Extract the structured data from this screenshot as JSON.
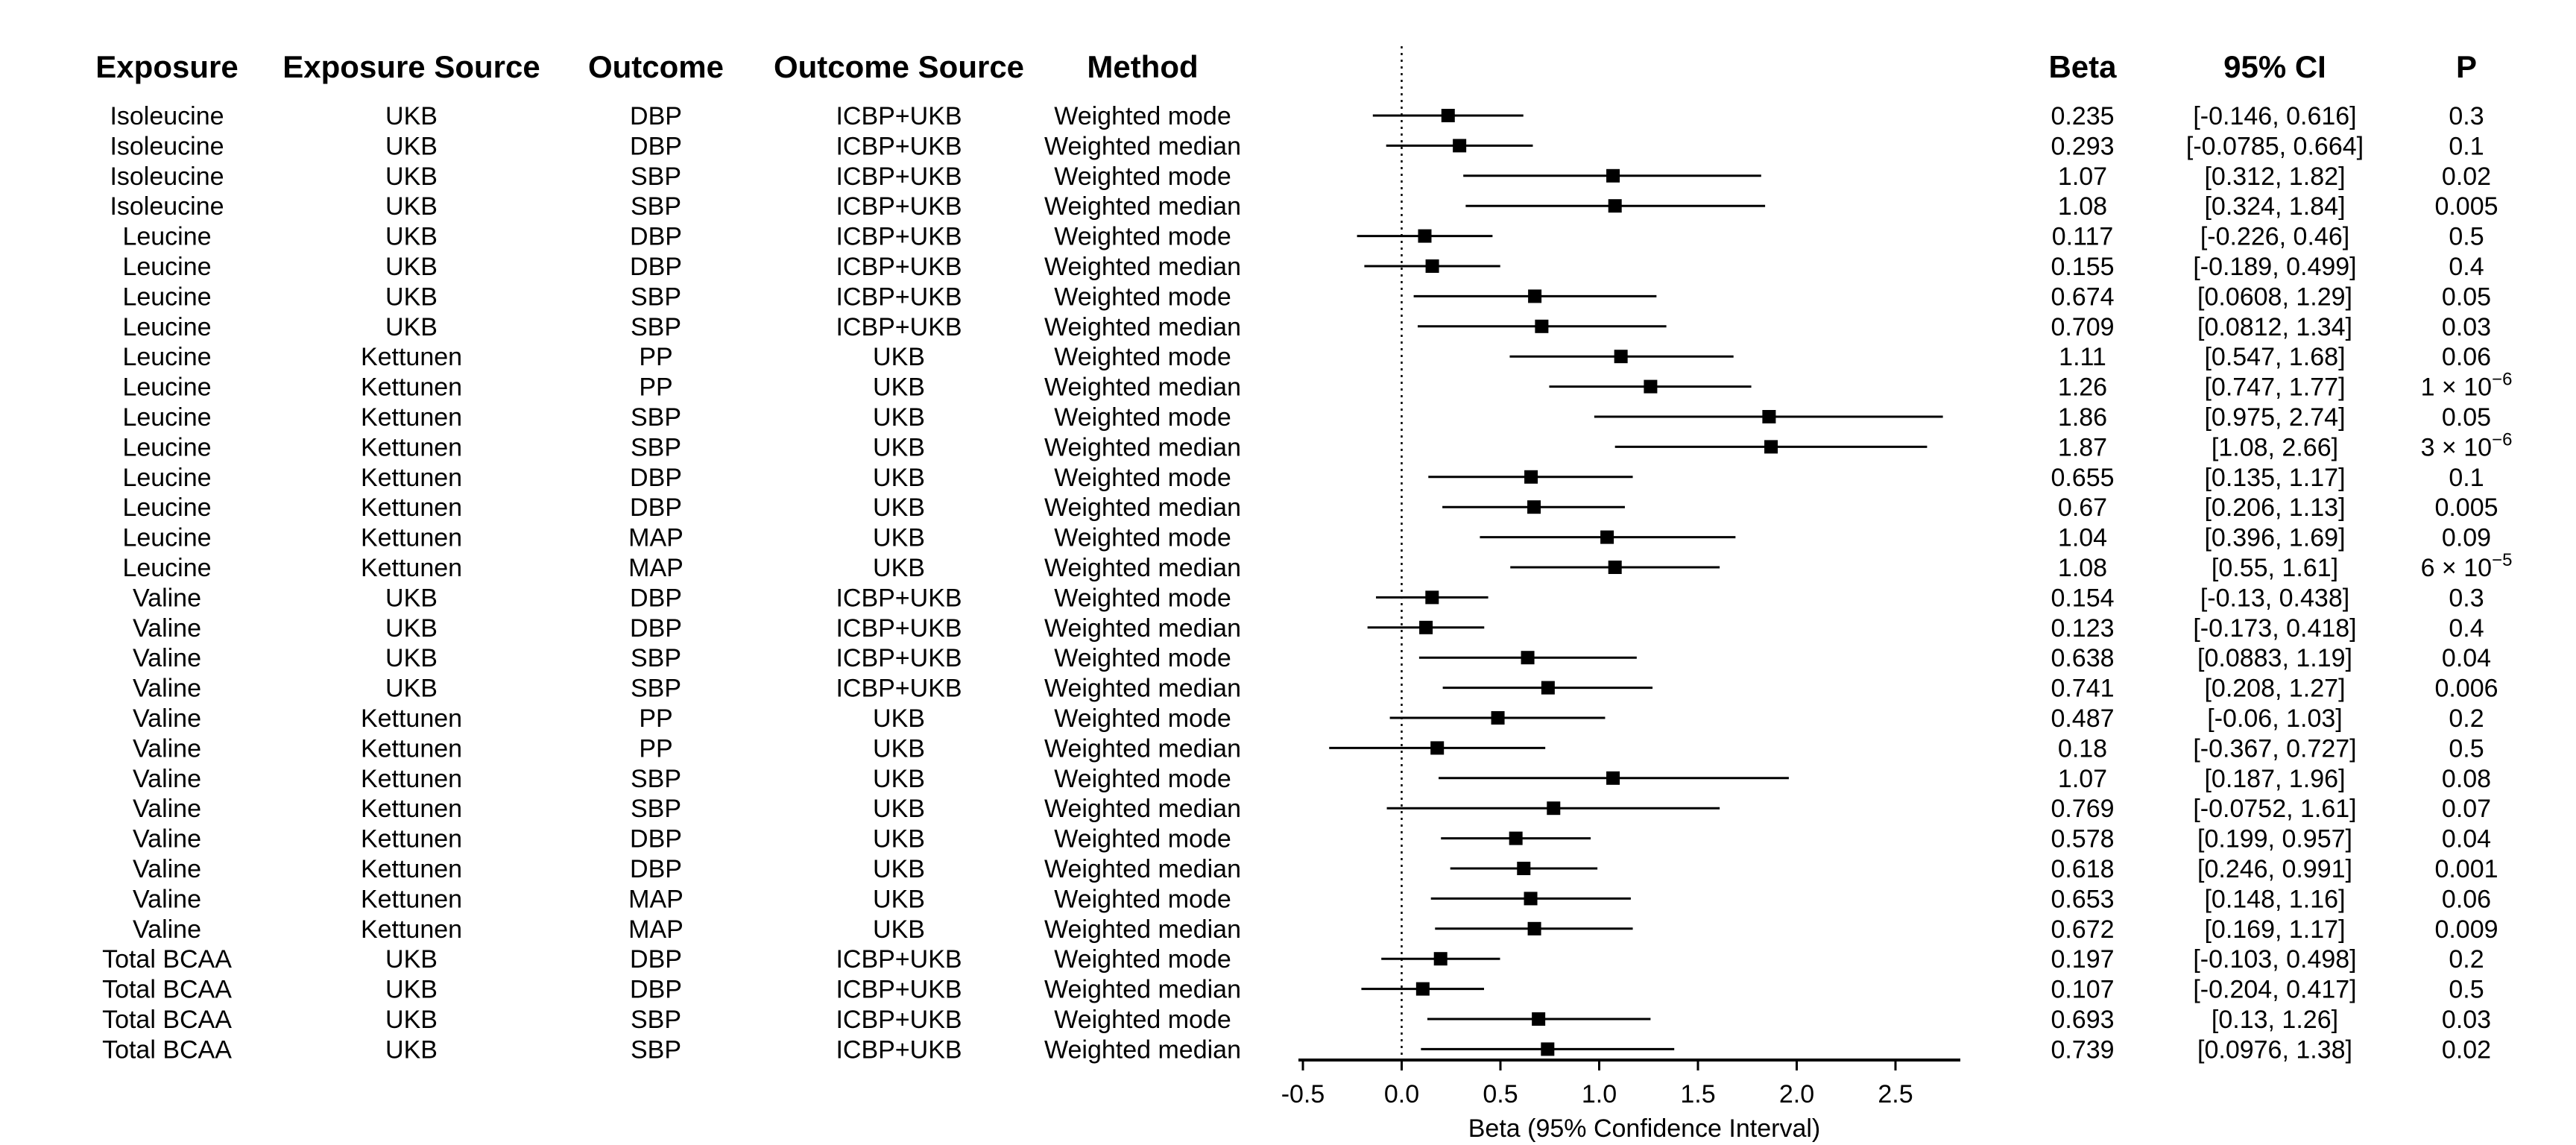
{
  "chart_data": {
    "type": "forest",
    "columns": [
      "Exposure",
      "Exposure Source",
      "Outcome",
      "Outcome Source",
      "Method",
      "Beta",
      "95% CI",
      "P"
    ],
    "rows": [
      {
        "exposure": "Isoleucine",
        "exposure_source": "UKB",
        "outcome": "DBP",
        "outcome_source": "ICBP+UKB",
        "method": "Weighted mode",
        "beta": 0.235,
        "lo": -0.146,
        "hi": 0.616,
        "beta_text": "0.235",
        "ci_text": "[-0.146, 0.616]",
        "p": "0.3",
        "p_exp": ""
      },
      {
        "exposure": "Isoleucine",
        "exposure_source": "UKB",
        "outcome": "DBP",
        "outcome_source": "ICBP+UKB",
        "method": "Weighted median",
        "beta": 0.293,
        "lo": -0.0785,
        "hi": 0.664,
        "beta_text": "0.293",
        "ci_text": "[-0.0785, 0.664]",
        "p": "0.1",
        "p_exp": ""
      },
      {
        "exposure": "Isoleucine",
        "exposure_source": "UKB",
        "outcome": "SBP",
        "outcome_source": "ICBP+UKB",
        "method": "Weighted mode",
        "beta": 1.07,
        "lo": 0.312,
        "hi": 1.82,
        "beta_text": "1.07",
        "ci_text": "[0.312, 1.82]",
        "p": "0.02",
        "p_exp": ""
      },
      {
        "exposure": "Isoleucine",
        "exposure_source": "UKB",
        "outcome": "SBP",
        "outcome_source": "ICBP+UKB",
        "method": "Weighted median",
        "beta": 1.08,
        "lo": 0.324,
        "hi": 1.84,
        "beta_text": "1.08",
        "ci_text": "[0.324, 1.84]",
        "p": "0.005",
        "p_exp": ""
      },
      {
        "exposure": "Leucine",
        "exposure_source": "UKB",
        "outcome": "DBP",
        "outcome_source": "ICBP+UKB",
        "method": "Weighted mode",
        "beta": 0.117,
        "lo": -0.226,
        "hi": 0.46,
        "beta_text": "0.117",
        "ci_text": "[-0.226, 0.46]",
        "p": "0.5",
        "p_exp": ""
      },
      {
        "exposure": "Leucine",
        "exposure_source": "UKB",
        "outcome": "DBP",
        "outcome_source": "ICBP+UKB",
        "method": "Weighted median",
        "beta": 0.155,
        "lo": -0.189,
        "hi": 0.499,
        "beta_text": "0.155",
        "ci_text": "[-0.189, 0.499]",
        "p": "0.4",
        "p_exp": ""
      },
      {
        "exposure": "Leucine",
        "exposure_source": "UKB",
        "outcome": "SBP",
        "outcome_source": "ICBP+UKB",
        "method": "Weighted mode",
        "beta": 0.674,
        "lo": 0.0608,
        "hi": 1.29,
        "beta_text": "0.674",
        "ci_text": "[0.0608, 1.29]",
        "p": "0.05",
        "p_exp": ""
      },
      {
        "exposure": "Leucine",
        "exposure_source": "UKB",
        "outcome": "SBP",
        "outcome_source": "ICBP+UKB",
        "method": "Weighted median",
        "beta": 0.709,
        "lo": 0.0812,
        "hi": 1.34,
        "beta_text": "0.709",
        "ci_text": "[0.0812, 1.34]",
        "p": "0.03",
        "p_exp": ""
      },
      {
        "exposure": "Leucine",
        "exposure_source": "Kettunen",
        "outcome": "PP",
        "outcome_source": "UKB",
        "method": "Weighted mode",
        "beta": 1.11,
        "lo": 0.547,
        "hi": 1.68,
        "beta_text": "1.11",
        "ci_text": "[0.547, 1.68]",
        "p": "0.06",
        "p_exp": ""
      },
      {
        "exposure": "Leucine",
        "exposure_source": "Kettunen",
        "outcome": "PP",
        "outcome_source": "UKB",
        "method": "Weighted median",
        "beta": 1.26,
        "lo": 0.747,
        "hi": 1.77,
        "beta_text": "1.26",
        "ci_text": "[0.747, 1.77]",
        "p": "1 × 10",
        "p_exp": "−6"
      },
      {
        "exposure": "Leucine",
        "exposure_source": "Kettunen",
        "outcome": "SBP",
        "outcome_source": "UKB",
        "method": "Weighted mode",
        "beta": 1.86,
        "lo": 0.975,
        "hi": 2.74,
        "beta_text": "1.86",
        "ci_text": "[0.975, 2.74]",
        "p": "0.05",
        "p_exp": ""
      },
      {
        "exposure": "Leucine",
        "exposure_source": "Kettunen",
        "outcome": "SBP",
        "outcome_source": "UKB",
        "method": "Weighted median",
        "beta": 1.87,
        "lo": 1.08,
        "hi": 2.66,
        "beta_text": "1.87",
        "ci_text": "[1.08, 2.66]",
        "p": "3 × 10",
        "p_exp": "−6"
      },
      {
        "exposure": "Leucine",
        "exposure_source": "Kettunen",
        "outcome": "DBP",
        "outcome_source": "UKB",
        "method": "Weighted mode",
        "beta": 0.655,
        "lo": 0.135,
        "hi": 1.17,
        "beta_text": "0.655",
        "ci_text": "[0.135, 1.17]",
        "p": "0.1",
        "p_exp": ""
      },
      {
        "exposure": "Leucine",
        "exposure_source": "Kettunen",
        "outcome": "DBP",
        "outcome_source": "UKB",
        "method": "Weighted median",
        "beta": 0.67,
        "lo": 0.206,
        "hi": 1.13,
        "beta_text": "0.67",
        "ci_text": "[0.206, 1.13]",
        "p": "0.005",
        "p_exp": ""
      },
      {
        "exposure": "Leucine",
        "exposure_source": "Kettunen",
        "outcome": "MAP",
        "outcome_source": "UKB",
        "method": "Weighted mode",
        "beta": 1.04,
        "lo": 0.396,
        "hi": 1.69,
        "beta_text": "1.04",
        "ci_text": "[0.396, 1.69]",
        "p": "0.09",
        "p_exp": ""
      },
      {
        "exposure": "Leucine",
        "exposure_source": "Kettunen",
        "outcome": "MAP",
        "outcome_source": "UKB",
        "method": "Weighted median",
        "beta": 1.08,
        "lo": 0.55,
        "hi": 1.61,
        "beta_text": "1.08",
        "ci_text": "[0.55, 1.61]",
        "p": "6 × 10",
        "p_exp": "−5"
      },
      {
        "exposure": "Valine",
        "exposure_source": "UKB",
        "outcome": "DBP",
        "outcome_source": "ICBP+UKB",
        "method": "Weighted mode",
        "beta": 0.154,
        "lo": -0.13,
        "hi": 0.438,
        "beta_text": "0.154",
        "ci_text": "[-0.13, 0.438]",
        "p": "0.3",
        "p_exp": ""
      },
      {
        "exposure": "Valine",
        "exposure_source": "UKB",
        "outcome": "DBP",
        "outcome_source": "ICBP+UKB",
        "method": "Weighted median",
        "beta": 0.123,
        "lo": -0.173,
        "hi": 0.418,
        "beta_text": "0.123",
        "ci_text": "[-0.173, 0.418]",
        "p": "0.4",
        "p_exp": ""
      },
      {
        "exposure": "Valine",
        "exposure_source": "UKB",
        "outcome": "SBP",
        "outcome_source": "ICBP+UKB",
        "method": "Weighted mode",
        "beta": 0.638,
        "lo": 0.0883,
        "hi": 1.19,
        "beta_text": "0.638",
        "ci_text": "[0.0883, 1.19]",
        "p": "0.04",
        "p_exp": ""
      },
      {
        "exposure": "Valine",
        "exposure_source": "UKB",
        "outcome": "SBP",
        "outcome_source": "ICBP+UKB",
        "method": "Weighted median",
        "beta": 0.741,
        "lo": 0.208,
        "hi": 1.27,
        "beta_text": "0.741",
        "ci_text": "[0.208, 1.27]",
        "p": "0.006",
        "p_exp": ""
      },
      {
        "exposure": "Valine",
        "exposure_source": "Kettunen",
        "outcome": "PP",
        "outcome_source": "UKB",
        "method": "Weighted mode",
        "beta": 0.487,
        "lo": -0.06,
        "hi": 1.03,
        "beta_text": "0.487",
        "ci_text": "[-0.06, 1.03]",
        "p": "0.2",
        "p_exp": ""
      },
      {
        "exposure": "Valine",
        "exposure_source": "Kettunen",
        "outcome": "PP",
        "outcome_source": "UKB",
        "method": "Weighted median",
        "beta": 0.18,
        "lo": -0.367,
        "hi": 0.727,
        "beta_text": "0.18",
        "ci_text": "[-0.367, 0.727]",
        "p": "0.5",
        "p_exp": ""
      },
      {
        "exposure": "Valine",
        "exposure_source": "Kettunen",
        "outcome": "SBP",
        "outcome_source": "UKB",
        "method": "Weighted mode",
        "beta": 1.07,
        "lo": 0.187,
        "hi": 1.96,
        "beta_text": "1.07",
        "ci_text": "[0.187, 1.96]",
        "p": "0.08",
        "p_exp": ""
      },
      {
        "exposure": "Valine",
        "exposure_source": "Kettunen",
        "outcome": "SBP",
        "outcome_source": "UKB",
        "method": "Weighted median",
        "beta": 0.769,
        "lo": -0.0752,
        "hi": 1.61,
        "beta_text": "0.769",
        "ci_text": "[-0.0752, 1.61]",
        "p": "0.07",
        "p_exp": ""
      },
      {
        "exposure": "Valine",
        "exposure_source": "Kettunen",
        "outcome": "DBP",
        "outcome_source": "UKB",
        "method": "Weighted mode",
        "beta": 0.578,
        "lo": 0.199,
        "hi": 0.957,
        "beta_text": "0.578",
        "ci_text": "[0.199, 0.957]",
        "p": "0.04",
        "p_exp": ""
      },
      {
        "exposure": "Valine",
        "exposure_source": "Kettunen",
        "outcome": "DBP",
        "outcome_source": "UKB",
        "method": "Weighted median",
        "beta": 0.618,
        "lo": 0.246,
        "hi": 0.991,
        "beta_text": "0.618",
        "ci_text": "[0.246, 0.991]",
        "p": "0.001",
        "p_exp": ""
      },
      {
        "exposure": "Valine",
        "exposure_source": "Kettunen",
        "outcome": "MAP",
        "outcome_source": "UKB",
        "method": "Weighted mode",
        "beta": 0.653,
        "lo": 0.148,
        "hi": 1.16,
        "beta_text": "0.653",
        "ci_text": "[0.148, 1.16]",
        "p": "0.06",
        "p_exp": ""
      },
      {
        "exposure": "Valine",
        "exposure_source": "Kettunen",
        "outcome": "MAP",
        "outcome_source": "UKB",
        "method": "Weighted median",
        "beta": 0.672,
        "lo": 0.169,
        "hi": 1.17,
        "beta_text": "0.672",
        "ci_text": "[0.169, 1.17]",
        "p": "0.009",
        "p_exp": ""
      },
      {
        "exposure": "Total BCAA",
        "exposure_source": "UKB",
        "outcome": "DBP",
        "outcome_source": "ICBP+UKB",
        "method": "Weighted mode",
        "beta": 0.197,
        "lo": -0.103,
        "hi": 0.498,
        "beta_text": "0.197",
        "ci_text": "[-0.103, 0.498]",
        "p": "0.2",
        "p_exp": ""
      },
      {
        "exposure": "Total BCAA",
        "exposure_source": "UKB",
        "outcome": "DBP",
        "outcome_source": "ICBP+UKB",
        "method": "Weighted median",
        "beta": 0.107,
        "lo": -0.204,
        "hi": 0.417,
        "beta_text": "0.107",
        "ci_text": "[-0.204, 0.417]",
        "p": "0.5",
        "p_exp": ""
      },
      {
        "exposure": "Total BCAA",
        "exposure_source": "UKB",
        "outcome": "SBP",
        "outcome_source": "ICBP+UKB",
        "method": "Weighted mode",
        "beta": 0.693,
        "lo": 0.13,
        "hi": 1.26,
        "beta_text": "0.693",
        "ci_text": "[0.13, 1.26]",
        "p": "0.03",
        "p_exp": ""
      },
      {
        "exposure": "Total BCAA",
        "exposure_source": "UKB",
        "outcome": "SBP",
        "outcome_source": "ICBP+UKB",
        "method": "Weighted median",
        "beta": 0.739,
        "lo": 0.0976,
        "hi": 1.38,
        "beta_text": "0.739",
        "ci_text": "[0.0976, 1.38]",
        "p": "0.02",
        "p_exp": ""
      }
    ],
    "xlim": [
      -0.5,
      2.85
    ],
    "xticks": [
      -0.5,
      0,
      0.5,
      1,
      1.5,
      2,
      2.5
    ],
    "xtick_labels": [
      "-0.5",
      "0.0",
      "0.5",
      "1.0",
      "1.5",
      "2.0",
      "2.5"
    ],
    "xlabel": "Beta (95% Confidence Interval)",
    "reference_line": 0,
    "grid": false,
    "legend": "none"
  }
}
